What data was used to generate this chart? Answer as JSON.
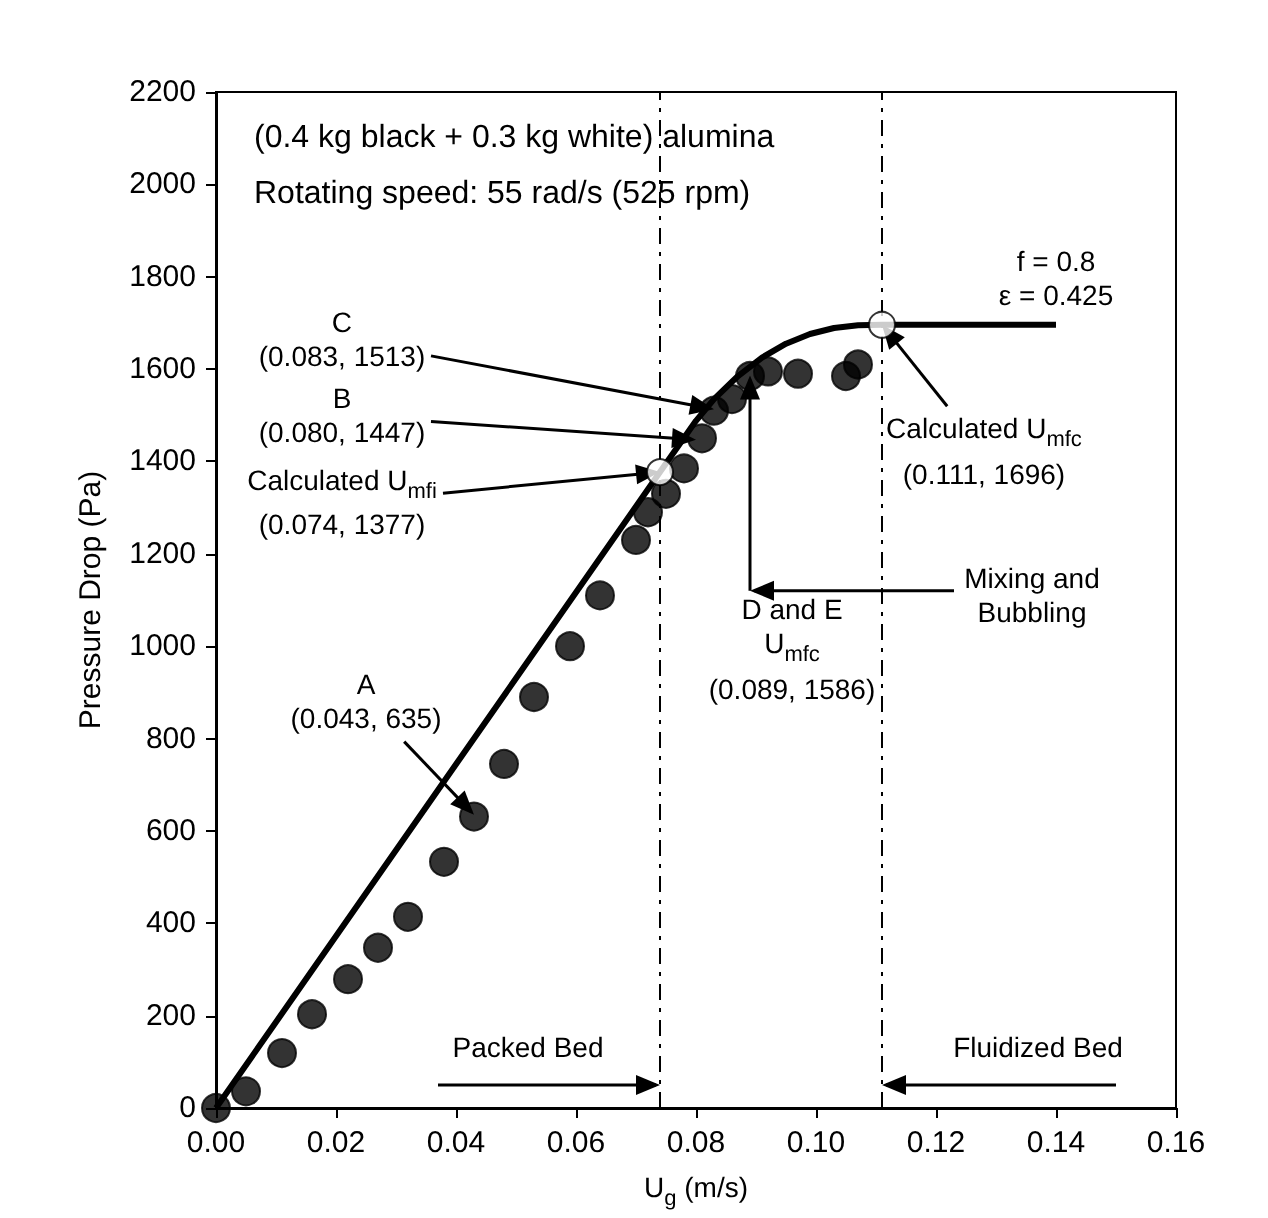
{
  "chart_data": {
    "type": "scatter",
    "title": "(0.4 kg black + 0.3 kg white) alumina",
    "subtitle": "Rotating speed: 55 rad/s (525 rpm)",
    "xlabel": "U$_{g}$ (m/s)",
    "ylabel": "Pressure Drop (Pa)",
    "xlim": [
      0,
      0.16
    ],
    "xticks": [
      {
        "value": 0,
        "label": "0.00"
      },
      {
        "value": 0.02,
        "label": "0.02"
      },
      {
        "value": 0.04,
        "label": "0.04"
      },
      {
        "value": 0.06,
        "label": "0.06"
      },
      {
        "value": 0.08,
        "label": "0.08"
      },
      {
        "value": 0.1,
        "label": "0.10"
      },
      {
        "value": 0.12,
        "label": "0.12"
      },
      {
        "value": 0.14,
        "label": "0.14"
      },
      {
        "value": 0.16,
        "label": "0.16"
      }
    ],
    "ylim": [
      0,
      2200
    ],
    "yticks": [
      0,
      200,
      400,
      600,
      800,
      1000,
      1200,
      1400,
      1600,
      1800,
      2000,
      2200
    ],
    "grid": false,
    "legend": false,
    "series": [
      {
        "color": "#000000",
        "marker": "circle",
        "x": [
          0,
          0.005,
          0.011,
          0.016,
          0.022,
          0.027,
          0.032,
          0.038,
          0.043,
          0.048,
          0.053,
          0.059,
          0.064,
          0.07,
          0.072,
          0.075,
          0.078,
          0.081,
          0.083,
          0.086,
          0.089,
          0.092,
          0.097,
          0.105,
          0.107
        ],
        "values": [
          0,
          36,
          119,
          203,
          279,
          347,
          414,
          533,
          631,
          745,
          890,
          1000,
          1110,
          1230,
          1290,
          1330,
          1385,
          1450,
          1510,
          1535,
          1585,
          1595,
          1590,
          1585,
          1610
        ]
      },
      {
        "type": "line",
        "color": "#000000",
        "marker": "none",
        "line_style": "solid",
        "x": [
          0,
          0.074,
          0.08,
          0.083,
          0.087,
          0.091,
          0.095,
          0.099,
          0.103,
          0.107,
          0.111,
          0.14
        ],
        "values": [
          0,
          1377,
          1488,
          1535,
          1585,
          1625,
          1655,
          1676,
          1689,
          1695,
          1696,
          1696
        ]
      },
      {
        "color": "#ffffff",
        "marker": "circle",
        "x": [
          0.074,
          0.111
        ],
        "values": [
          1377,
          1696
        ]
      }
    ],
    "ref_lines": [
      {
        "axis": "x",
        "value": 0.074,
        "line_style": "dashed",
        "color": "#000000"
      },
      {
        "axis": "x",
        "value": 0.111,
        "line_style": "dashed",
        "color": "#000000"
      }
    ],
    "annotations": [
      "f = 0.8",
      "ε = 0.425",
      {
        "text": "A\n(0.043, 635)",
        "x": 0.043,
        "y": 635
      },
      {
        "text": "Calculated U$_{mfi}$\n(0.074, 1377)",
        "x": 0.074,
        "y": 1377
      },
      {
        "text": "B\n(0.080, 1447)",
        "x": 0.08,
        "y": 1447
      },
      {
        "text": "C\n(0.083, 1513)",
        "x": 0.083,
        "y": 1513
      },
      {
        "text": "D and E\nU$_{mfc}$\n(0.089, 1586)",
        "x": 0.089,
        "y": 1586
      },
      {
        "text": "Calculated U$_{mfc}$\n(0.111, 1696)",
        "x": 0.111,
        "y": 1696
      },
      "Mixing and\nBubbling",
      {
        "text": "Packed Bed",
        "x": 0.074,
        "y": 50
      },
      {
        "text": "Fluidized Bed",
        "x": 0.111,
        "y": 50
      }
    ]
  }
}
